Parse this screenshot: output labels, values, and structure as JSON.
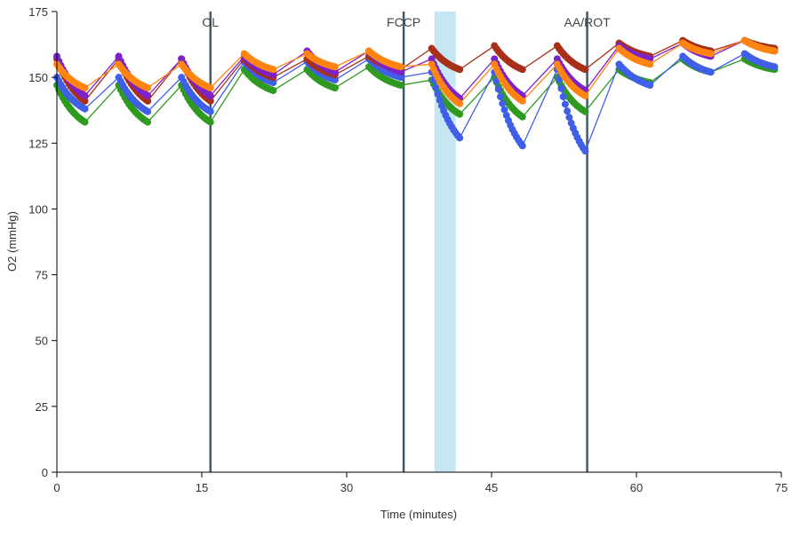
{
  "chart_data": {
    "type": "line",
    "xlabel": "Time (minutes)",
    "ylabel": "O2 (mmHg)",
    "xlim": [
      0,
      75
    ],
    "ylim": [
      0,
      175
    ],
    "xticks": [
      0,
      15,
      30,
      45,
      60,
      75
    ],
    "yticks": [
      0,
      25,
      50,
      75,
      100,
      125,
      150,
      175
    ],
    "grid": false,
    "legend": "none",
    "events": [
      {
        "label": "OL",
        "x": 15.9
      },
      {
        "label": "FCCP",
        "x": 35.9
      },
      {
        "label": "AA/ROT",
        "x": 54.9
      }
    ],
    "highlight_band": {
      "x0": 39.1,
      "x1": 41.3,
      "color": "#c6e6f3"
    },
    "points_per_cycle": 15,
    "cycles": [
      [
        0,
        2.9
      ],
      [
        6.4,
        9.4
      ],
      [
        12.9,
        15.9
      ],
      [
        19.4,
        22.4
      ],
      [
        25.9,
        28.8
      ],
      [
        32.3,
        35.6
      ],
      [
        38.8,
        41.7
      ],
      [
        45.3,
        48.2
      ],
      [
        51.8,
        54.7
      ],
      [
        58.2,
        61.4
      ],
      [
        64.8,
        67.7
      ],
      [
        71.2,
        74.3
      ]
    ],
    "series": [
      {
        "name": "green",
        "color": "#2e9a1f",
        "cycles": [
          [
            147,
            133
          ],
          [
            147,
            133
          ],
          [
            147,
            133
          ],
          [
            153,
            145
          ],
          [
            153,
            146
          ],
          [
            154,
            147
          ],
          [
            149,
            136
          ],
          [
            150,
            135
          ],
          [
            150,
            137
          ],
          [
            153,
            148
          ],
          [
            157,
            152
          ],
          [
            157,
            153
          ]
        ]
      },
      {
        "name": "blue",
        "color": "#3f5fe8",
        "cycles": [
          [
            150,
            138
          ],
          [
            150,
            137
          ],
          [
            150,
            137
          ],
          [
            156,
            148
          ],
          [
            156,
            149
          ],
          [
            157,
            150
          ],
          [
            152,
            127
          ],
          [
            152,
            124
          ],
          [
            153,
            122
          ],
          [
            155,
            147
          ],
          [
            158,
            152
          ],
          [
            159,
            154
          ]
        ]
      },
      {
        "name": "red",
        "color": "#a8301a",
        "cycles": [
          [
            157,
            141
          ],
          [
            157,
            141
          ],
          [
            157,
            141
          ],
          [
            157,
            150
          ],
          [
            157,
            151
          ],
          [
            158,
            153
          ],
          [
            161,
            153
          ],
          [
            162,
            153
          ],
          [
            162,
            153
          ],
          [
            163,
            158
          ],
          [
            164,
            160
          ],
          [
            164,
            161
          ]
        ]
      },
      {
        "name": "purple",
        "color": "#7d22c9",
        "cycles": [
          [
            158,
            143
          ],
          [
            158,
            143
          ],
          [
            157,
            143
          ],
          [
            158,
            151
          ],
          [
            160,
            152
          ],
          [
            160,
            152
          ],
          [
            157,
            142
          ],
          [
            157,
            143
          ],
          [
            157,
            145
          ],
          [
            162,
            157
          ],
          [
            163,
            158
          ],
          [
            164,
            160
          ]
        ]
      },
      {
        "name": "orange",
        "color": "#ff8410",
        "cycles": [
          [
            155,
            146
          ],
          [
            155,
            146
          ],
          [
            155,
            146
          ],
          [
            159,
            153
          ],
          [
            159,
            154
          ],
          [
            160,
            154
          ],
          [
            155,
            140
          ],
          [
            155,
            141
          ],
          [
            155,
            143
          ],
          [
            161,
            155
          ],
          [
            163,
            159
          ],
          [
            164,
            160
          ]
        ]
      }
    ]
  }
}
